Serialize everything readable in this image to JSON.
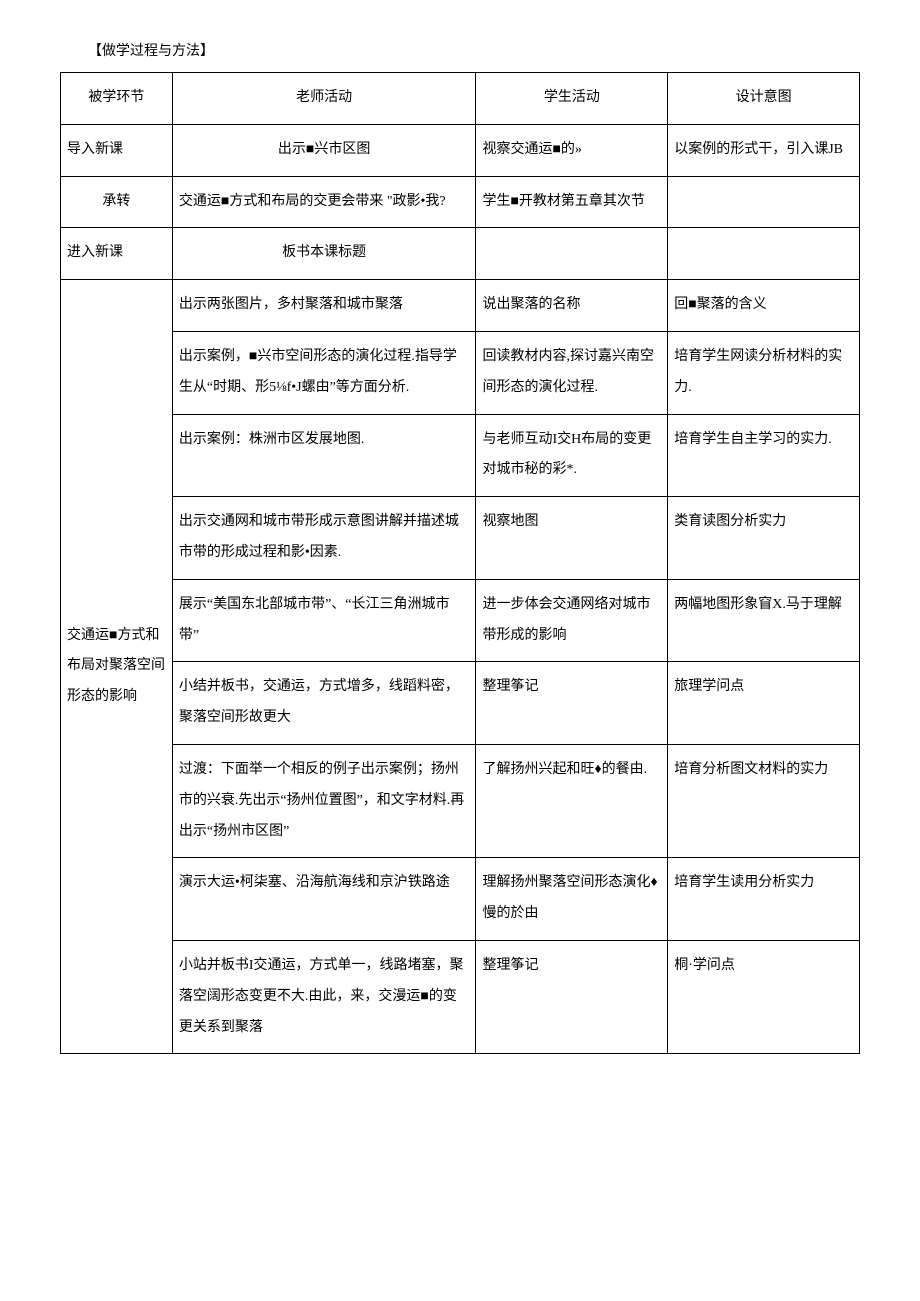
{
  "heading": "【做学过程与方法】",
  "header": {
    "c1": "被学环节",
    "c2": "老师活动",
    "c3": "学生活动",
    "c4": "设计意图"
  },
  "rows": {
    "r1": {
      "c1": "导入新课",
      "c2": "出示■兴市区图",
      "c3": "视察交通运■的»",
      "c4": "以案例的形式干，引入课JB"
    },
    "r2": {
      "c1": "承转",
      "c2": "交通运■方式和布局的交更会带来 \"政影•我?",
      "c3": "学生■开教材第五章其次节",
      "c4": ""
    },
    "r3": {
      "c1": "进入新课",
      "c2": "板书本课标题",
      "c3": "",
      "c4": ""
    },
    "section": "交通运■方式和布局对聚落空间形态的影响",
    "r4": {
      "c2": "出示两张图片，多村聚落和城市聚落",
      "c3": "说出聚落的名称",
      "c4": "回■聚落的含义"
    },
    "r5": {
      "c2": "出示案例，■兴市空间形态的演化过程.指导学生从“时期、形5⅛f•J螺由”等方面分析.",
      "c3": "回读教材内容,探讨嘉兴南空间形态的演化过程.",
      "c4": "培育学生网读分析材料的实力."
    },
    "r6": {
      "c2": "出示案例：株洲市区发展地图.",
      "c3": "与老师互动I交H布局的变更对城市秘的彩*.",
      "c4": "培育学生自主学习的实力."
    },
    "r7": {
      "c2": "出示交通网和城市带形成示意图讲解并描述城市带的形成过程和影•因素.",
      "c3": "视察地图",
      "c4": "类育读图分析实力"
    },
    "r8": {
      "c2": "展示“美国东北部城市带”、“长江三角洲城市带”",
      "c3": "进一步体会交通网络对城市带形成的影响",
      "c4": "两幅地图形象窅X.马于理解"
    },
    "r9": {
      "c2": "小结并板书，交通运，方式增多，线蹈料密，聚落空间形故更大",
      "c3": "整理筝记",
      "c4": "旅理学问点"
    },
    "r10": {
      "c2": "过渡：下面举一个相反的例子出示案例；扬州市的兴衰.先出示“扬州位置图”，和文字材料.再出示“扬州市区图”",
      "c3": "了解扬州兴起和旺♦的餐由.",
      "c4": "培育分析图文材料的实力"
    },
    "r11": {
      "c2": "演示大运•柯柒塞、沿海航海线和京沪铁路途",
      "c3": "理解扬州聚落空间形态演化♦慢的於由",
      "c4": "培育学生读用分析实力"
    },
    "r12": {
      "c2": "小站并板书I交通运，方式单一，线路堵塞，聚落空阔形态变更不大.由此，来，交漫运■的变更关系到聚落",
      "c3": "整理筝记",
      "c4": "桐·学问点"
    }
  }
}
